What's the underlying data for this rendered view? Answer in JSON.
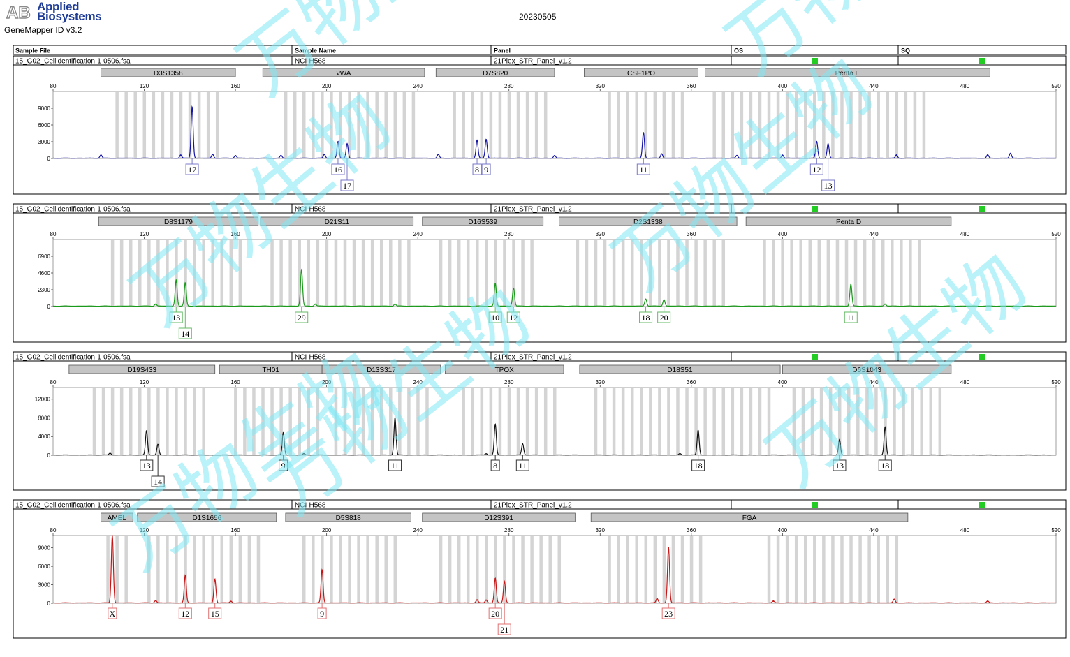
{
  "header": {
    "logo_text": "AB",
    "brand_line1": "Applied",
    "brand_line2": "Biosystems",
    "software": "GeneMapper ID v3.2",
    "report_title": "20230505"
  },
  "columns": {
    "sample_file": "Sample File",
    "sample_name": "Sample Name",
    "panel": "Panel",
    "os": "OS",
    "sq": "SQ"
  },
  "watermark": {
    "text": "万物生物",
    "color": "#7fe8f4"
  },
  "x_axis": {
    "min": 80,
    "max": 520,
    "ticks": [
      80,
      120,
      160,
      200,
      240,
      280,
      320,
      360,
      400,
      440,
      480,
      520
    ]
  },
  "panels": [
    {
      "sample_file": "15_G02_Cellidentification-1-0506.fsa",
      "sample_name": "NCI-H568",
      "panel": "21Plex_STR_Panel_v1.2",
      "os_status": "pass",
      "sq_status": "pass",
      "status_color": "#22cc22",
      "dye_color": "#1414a8",
      "label_border": "#7878c8",
      "y_ticks": [
        0,
        3000,
        6000,
        9000
      ],
      "y_max": 12000,
      "markers": [
        {
          "name": "D3S1358",
          "start": 101,
          "end": 160
        },
        {
          "name": "vWA",
          "start": 172,
          "end": 243
        },
        {
          "name": "D7S820",
          "start": 248,
          "end": 300
        },
        {
          "name": "CSF1PO",
          "start": 313,
          "end": 363
        },
        {
          "name": "Penta E",
          "start": 366,
          "end": 491
        }
      ],
      "bins": [
        [
          108,
          152
        ],
        [
          182,
          238
        ],
        [
          256,
          298
        ],
        [
          324,
          358
        ],
        [
          370,
          464
        ]
      ],
      "peaks": [
        {
          "x": 101,
          "h": 600
        },
        {
          "x": 136,
          "h": 600
        },
        {
          "x": 141,
          "h": 9200,
          "label": "17",
          "row": 0
        },
        {
          "x": 150,
          "h": 700
        },
        {
          "x": 160,
          "h": 500
        },
        {
          "x": 180,
          "h": 500
        },
        {
          "x": 199,
          "h": 700
        },
        {
          "x": 205,
          "h": 3000,
          "label": "16",
          "row": 0
        },
        {
          "x": 209,
          "h": 2600,
          "label": "17",
          "row": 1
        },
        {
          "x": 249,
          "h": 700
        },
        {
          "x": 266,
          "h": 3200,
          "label": "8",
          "row": 0
        },
        {
          "x": 270,
          "h": 3400,
          "label": "9",
          "row": 0
        },
        {
          "x": 300,
          "h": 500
        },
        {
          "x": 339,
          "h": 4600,
          "label": "11",
          "row": 0
        },
        {
          "x": 347,
          "h": 800
        },
        {
          "x": 380,
          "h": 500
        },
        {
          "x": 400,
          "h": 600
        },
        {
          "x": 415,
          "h": 3000,
          "label": "12",
          "row": 0
        },
        {
          "x": 420,
          "h": 2600,
          "label": "13",
          "row": 1
        },
        {
          "x": 450,
          "h": 600
        },
        {
          "x": 490,
          "h": 600
        },
        {
          "x": 500,
          "h": 900
        }
      ]
    },
    {
      "sample_file": "15_G02_Cellidentification-1-0506.fsa",
      "sample_name": "NCI-H568",
      "panel": "21Plex_STR_Panel_v1.2",
      "os_status": "pass",
      "sq_status": "pass",
      "status_color": "#22cc22",
      "dye_color": "#1a9a1a",
      "label_border": "#66bb66",
      "y_ticks": [
        0,
        2300,
        4600,
        6900
      ],
      "y_max": 9200,
      "markers": [
        {
          "name": "D8S1179",
          "start": 100,
          "end": 170
        },
        {
          "name": "D21S11",
          "start": 171,
          "end": 238
        },
        {
          "name": "D16S539",
          "start": 242,
          "end": 295
        },
        {
          "name": "D2S1338",
          "start": 302,
          "end": 380
        },
        {
          "name": "Penta D",
          "start": 384,
          "end": 474
        }
      ],
      "bins": [
        [
          106,
          165
        ],
        [
          176,
          236
        ],
        [
          250,
          290
        ],
        [
          310,
          375
        ],
        [
          392,
          462
        ]
      ],
      "peaks": [
        {
          "x": 125,
          "h": 300
        },
        {
          "x": 134,
          "h": 3600,
          "label": "13",
          "row": 0
        },
        {
          "x": 138,
          "h": 3200,
          "label": "14",
          "row": 1
        },
        {
          "x": 189,
          "h": 5000,
          "label": "29",
          "row": 0
        },
        {
          "x": 195,
          "h": 300
        },
        {
          "x": 230,
          "h": 300
        },
        {
          "x": 274,
          "h": 3100,
          "label": "10",
          "row": 0
        },
        {
          "x": 282,
          "h": 2500,
          "label": "12",
          "row": 0
        },
        {
          "x": 340,
          "h": 1000,
          "label": "18",
          "row": 0
        },
        {
          "x": 348,
          "h": 900,
          "label": "20",
          "row": 0
        },
        {
          "x": 430,
          "h": 3000,
          "label": "11",
          "row": 0
        },
        {
          "x": 445,
          "h": 300
        }
      ]
    },
    {
      "sample_file": "15_G02_Cellidentification-1-0506.fsa",
      "sample_name": "NCI-H568",
      "panel": "21Plex_STR_Panel_v1.2",
      "os_status": "pass",
      "sq_status": "pass",
      "status_color": "#22cc22",
      "dye_color": "#111111",
      "label_border": "#333333",
      "y_ticks": [
        0,
        4000,
        8000,
        12000
      ],
      "y_max": 14500,
      "markers": [
        {
          "name": "D19S433",
          "start": 87,
          "end": 151
        },
        {
          "name": "TH01",
          "start": 153,
          "end": 198
        },
        {
          "name": "D13S317",
          "start": 198,
          "end": 250
        },
        {
          "name": "TPOX",
          "start": 252,
          "end": 304
        },
        {
          "name": "D18S51",
          "start": 311,
          "end": 399
        },
        {
          "name": "D6S1043",
          "start": 400,
          "end": 474
        }
      ],
      "bins": [
        [
          98,
          148
        ],
        [
          160,
          196
        ],
        [
          204,
          246
        ],
        [
          260,
          300
        ],
        [
          318,
          395
        ],
        [
          405,
          472
        ]
      ],
      "peaks": [
        {
          "x": 105,
          "h": 400
        },
        {
          "x": 121,
          "h": 5200,
          "label": "13",
          "row": 0
        },
        {
          "x": 126,
          "h": 2300,
          "label": "14",
          "row": 1
        },
        {
          "x": 181,
          "h": 4800,
          "label": "9",
          "row": 0
        },
        {
          "x": 190,
          "h": 300
        },
        {
          "x": 230,
          "h": 8000,
          "label": "11",
          "row": 0
        },
        {
          "x": 270,
          "h": 300
        },
        {
          "x": 274,
          "h": 6600,
          "label": "8",
          "row": 0
        },
        {
          "x": 286,
          "h": 2400,
          "label": "11",
          "row": 0
        },
        {
          "x": 355,
          "h": 300
        },
        {
          "x": 363,
          "h": 5300,
          "label": "18",
          "row": 0
        },
        {
          "x": 425,
          "h": 3300,
          "label": "13",
          "row": 0
        },
        {
          "x": 445,
          "h": 6000,
          "label": "18",
          "row": 0
        }
      ]
    },
    {
      "sample_file": "15_G02_Cellidentification-1-0506.fsa",
      "sample_name": "NCI-H568",
      "panel": "21Plex_STR_Panel_v1.2",
      "os_status": "pass",
      "sq_status": "pass",
      "status_color": "#22cc22",
      "dye_color": "#c81414",
      "label_border": "#e07070",
      "y_ticks": [
        0,
        3000,
        6000,
        9000
      ],
      "y_max": 11000,
      "markers": [
        {
          "name": "AMEL",
          "start": 101,
          "end": 115
        },
        {
          "name": "D1S1656",
          "start": 117,
          "end": 178
        },
        {
          "name": "D5S818",
          "start": 182,
          "end": 237
        },
        {
          "name": "D12S391",
          "start": 242,
          "end": 309
        },
        {
          "name": "FGA",
          "start": 316,
          "end": 455
        }
      ],
      "bins": [
        [
          104,
          113
        ],
        [
          122,
          170
        ],
        [
          190,
          232
        ],
        [
          250,
          302
        ],
        [
          324,
          364
        ],
        [
          394,
          450
        ]
      ],
      "peaks": [
        {
          "x": 106,
          "h": 11000,
          "label": "X",
          "row": 0
        },
        {
          "x": 125,
          "h": 400
        },
        {
          "x": 138,
          "h": 4500,
          "label": "12",
          "row": 0
        },
        {
          "x": 151,
          "h": 3900,
          "label": "15",
          "row": 0
        },
        {
          "x": 158,
          "h": 300
        },
        {
          "x": 198,
          "h": 5400,
          "label": "9",
          "row": 0
        },
        {
          "x": 266,
          "h": 500
        },
        {
          "x": 270,
          "h": 500
        },
        {
          "x": 274,
          "h": 4000,
          "label": "20",
          "row": 0
        },
        {
          "x": 278,
          "h": 3500,
          "label": "21",
          "row": 1
        },
        {
          "x": 345,
          "h": 700
        },
        {
          "x": 350,
          "h": 9000,
          "label": "23",
          "row": 0
        },
        {
          "x": 396,
          "h": 300
        },
        {
          "x": 449,
          "h": 600
        },
        {
          "x": 490,
          "h": 300
        }
      ]
    }
  ],
  "chart_data": [
    {
      "type": "line",
      "series": [
        {
          "name": "",
          "peaks_x": [
            141,
            205,
            209,
            266,
            270,
            339,
            415,
            420
          ],
          "peaks_height": [
            9200,
            3000,
            2600,
            3200,
            3400,
            4600,
            3000,
            2600
          ]
        }
      ],
      "alleles": {
        "D3S1358": [
          "17"
        ],
        "vWA": [
          "16",
          "17"
        ],
        "D7S820": [
          "8",
          "9"
        ],
        "CSF1PO": [
          "11"
        ],
        "Penta E": [
          "12",
          "13"
        ]
      },
      "xlim": [
        80,
        520
      ],
      "ylim": [
        0,
        12000
      ]
    },
    {
      "type": "line",
      "series": [
        {
          "name": "",
          "peaks_x": [
            134,
            138,
            189,
            274,
            282,
            340,
            348,
            430
          ],
          "peaks_height": [
            3600,
            3200,
            5000,
            3100,
            2500,
            1000,
            900,
            3000
          ]
        }
      ],
      "alleles": {
        "D8S1179": [
          "13",
          "14"
        ],
        "D21S11": [
          "29"
        ],
        "D16S539": [
          "10",
          "12"
        ],
        "D2S1338": [
          "18",
          "20"
        ],
        "Penta D": [
          "11"
        ]
      },
      "xlim": [
        80,
        520
      ],
      "ylim": [
        0,
        9200
      ]
    },
    {
      "type": "line",
      "series": [
        {
          "name": "",
          "peaks_x": [
            121,
            126,
            181,
            230,
            274,
            286,
            363,
            425,
            445
          ],
          "peaks_height": [
            5200,
            2300,
            4800,
            8000,
            6600,
            2400,
            5300,
            3300,
            6000
          ]
        }
      ],
      "alleles": {
        "D19S433": [
          "13",
          "14"
        ],
        "TH01": [
          "9"
        ],
        "D13S317": [
          "11"
        ],
        "TPOX": [
          "8",
          "11"
        ],
        "D18S51": [
          "18"
        ],
        "D6S1043": [
          "13",
          "18"
        ]
      },
      "xlim": [
        80,
        520
      ],
      "ylim": [
        0,
        14500
      ]
    },
    {
      "type": "line",
      "series": [
        {
          "name": "",
          "peaks_x": [
            106,
            138,
            151,
            198,
            274,
            278,
            350
          ],
          "peaks_height": [
            11000,
            4500,
            3900,
            5400,
            4000,
            3500,
            9000
          ]
        }
      ],
      "alleles": {
        "AMEL": [
          "X"
        ],
        "D1S1656": [
          "12",
          "15"
        ],
        "D5S818": [
          "9"
        ],
        "D12S391": [
          "20",
          "21"
        ],
        "FGA": [
          "23"
        ]
      },
      "xlim": [
        80,
        520
      ],
      "ylim": [
        0,
        11000
      ]
    }
  ]
}
